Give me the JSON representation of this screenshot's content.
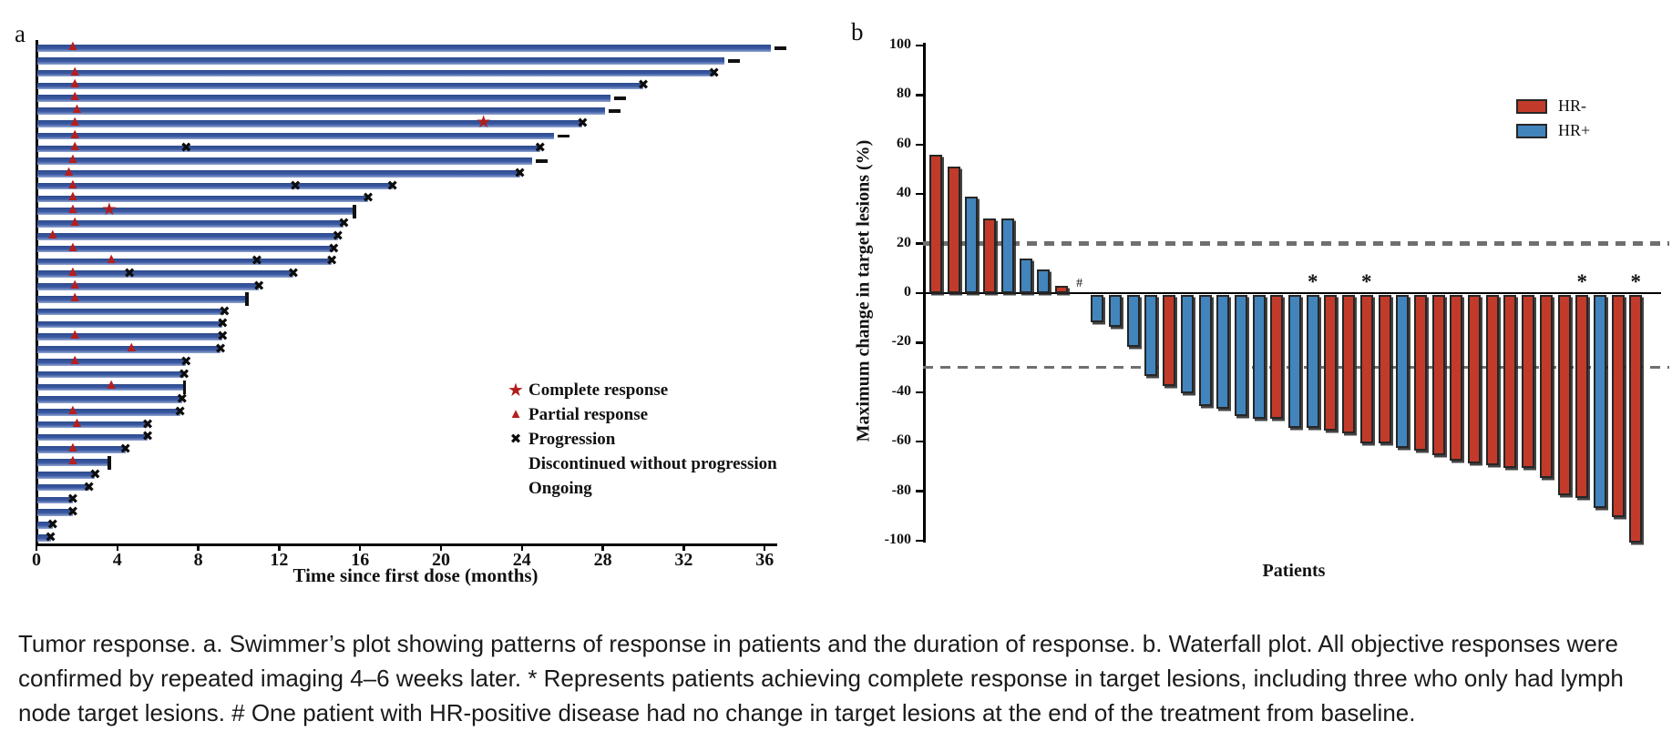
{
  "caption": {
    "lines": [
      "Tumor response. a. Swimmer’s plot showing patterns of response in patients and the duration of response. b. Waterfall plot. All objective responses were",
      "confirmed by repeated imaging 4–6 weeks later. * Represents patients achieving complete response in target lesions, including three who only had lymph",
      "node target lesions. # One patient with HR-positive disease had no change in target lesions at the end of the treatment from baseline."
    ]
  },
  "colors": {
    "swimmer_bar": "#3a59a3",
    "response_red": "#b51f1f",
    "hr_negative": "#c23b2a",
    "hr_positive": "#4284bc",
    "marker_black": "#0d0d0d",
    "dashed_gray": "#6f6f6f"
  },
  "chart_data": [
    {
      "id": "swimmer",
      "type": "bar",
      "orientation": "horizontal",
      "panel_label": "a",
      "xlabel": "Time since first dose (months)",
      "xticks": [
        0,
        4,
        8,
        12,
        16,
        20,
        24,
        28,
        32,
        36
      ],
      "xlim": [
        0,
        36.6
      ],
      "legend": [
        {
          "symbol": "star",
          "label": "Complete response"
        },
        {
          "symbol": "triangle",
          "label": "Partial response"
        },
        {
          "symbol": "cross",
          "label": "Progression"
        },
        {
          "symbol": "vbar",
          "label": "Discontinued without progression"
        },
        {
          "symbol": "dash",
          "label": "Ongoing"
        }
      ],
      "bars": [
        {
          "months": 36.3,
          "end": "ongoing",
          "events": [
            [
              "pr",
              1.8
            ]
          ]
        },
        {
          "months": 34.0,
          "end": "ongoing",
          "events": []
        },
        {
          "months": 33.5,
          "end": "progression",
          "events": [
            [
              "pr",
              1.9
            ]
          ]
        },
        {
          "months": 30.0,
          "end": "progression",
          "events": [
            [
              "pr",
              1.9
            ]
          ]
        },
        {
          "months": 28.4,
          "end": "ongoing",
          "events": [
            [
              "pr",
              1.9
            ]
          ]
        },
        {
          "months": 28.1,
          "end": "ongoing",
          "events": [
            [
              "pr",
              2.0
            ]
          ]
        },
        {
          "months": 27.0,
          "end": "progression",
          "events": [
            [
              "pr",
              1.9
            ],
            [
              "cr",
              22.1
            ]
          ]
        },
        {
          "months": 25.6,
          "end": "ongoing",
          "events": [
            [
              "pr",
              1.9
            ]
          ]
        },
        {
          "months": 24.9,
          "end": "progression",
          "events": [
            [
              "pr",
              1.9
            ],
            [
              "x",
              7.4
            ]
          ]
        },
        {
          "months": 24.5,
          "end": "ongoing",
          "events": [
            [
              "pr",
              1.8
            ]
          ]
        },
        {
          "months": 23.9,
          "end": "progression",
          "events": [
            [
              "pr",
              1.6
            ]
          ]
        },
        {
          "months": 17.6,
          "end": "progression",
          "events": [
            [
              "pr",
              1.8
            ],
            [
              "x",
              12.8
            ]
          ]
        },
        {
          "months": 16.4,
          "end": "progression",
          "events": [
            [
              "pr",
              1.8
            ]
          ]
        },
        {
          "months": 15.7,
          "end": "discontinued",
          "events": [
            [
              "pr",
              1.8
            ],
            [
              "cr",
              3.6
            ]
          ]
        },
        {
          "months": 15.2,
          "end": "progression",
          "events": [
            [
              "pr",
              1.9
            ]
          ]
        },
        {
          "months": 14.9,
          "end": "progression",
          "events": [
            [
              "pr",
              0.8
            ]
          ]
        },
        {
          "months": 14.7,
          "end": "progression",
          "events": [
            [
              "pr",
              1.8
            ]
          ]
        },
        {
          "months": 14.6,
          "end": "progression",
          "events": [
            [
              "pr",
              3.7
            ],
            [
              "x",
              10.9
            ]
          ]
        },
        {
          "months": 12.7,
          "end": "progression",
          "events": [
            [
              "pr",
              1.8
            ],
            [
              "x",
              4.6
            ]
          ]
        },
        {
          "months": 11.0,
          "end": "progression",
          "events": [
            [
              "pr",
              1.9
            ]
          ]
        },
        {
          "months": 10.4,
          "end": "discontinued",
          "events": [
            [
              "pr",
              1.9
            ]
          ]
        },
        {
          "months": 9.3,
          "end": "progression",
          "events": []
        },
        {
          "months": 9.2,
          "end": "progression",
          "events": []
        },
        {
          "months": 9.2,
          "end": "progression",
          "events": [
            [
              "pr",
              1.9
            ]
          ]
        },
        {
          "months": 9.1,
          "end": "progression",
          "events": [
            [
              "pr",
              4.7
            ]
          ]
        },
        {
          "months": 7.4,
          "end": "progression",
          "events": [
            [
              "pr",
              1.9
            ]
          ]
        },
        {
          "months": 7.3,
          "end": "progression",
          "events": []
        },
        {
          "months": 7.3,
          "end": "discontinued",
          "events": [
            [
              "pr",
              3.7
            ]
          ]
        },
        {
          "months": 7.2,
          "end": "progression",
          "events": []
        },
        {
          "months": 7.1,
          "end": "progression",
          "events": [
            [
              "pr",
              1.8
            ]
          ]
        },
        {
          "months": 5.5,
          "end": "progression",
          "events": [
            [
              "pr",
              2.0
            ]
          ]
        },
        {
          "months": 5.5,
          "end": "progression",
          "events": []
        },
        {
          "months": 4.4,
          "end": "progression",
          "events": [
            [
              "pr",
              1.8
            ]
          ]
        },
        {
          "months": 3.6,
          "end": "discontinued",
          "events": [
            [
              "pr",
              1.8
            ]
          ]
        },
        {
          "months": 2.9,
          "end": "progression",
          "events": []
        },
        {
          "months": 2.6,
          "end": "progression",
          "events": []
        },
        {
          "months": 1.8,
          "end": "progression",
          "events": []
        },
        {
          "months": 1.8,
          "end": "progression",
          "events": []
        },
        {
          "months": 0.8,
          "end": "progression",
          "events": []
        },
        {
          "months": 0.7,
          "end": "progression",
          "events": []
        }
      ]
    },
    {
      "id": "waterfall",
      "type": "bar",
      "panel_label": "b",
      "ylabel": "Maximum change in target lesions (%)",
      "xlabel": "Patients",
      "ylim": [
        -100,
        100
      ],
      "yticks": [
        100,
        80,
        60,
        40,
        20,
        0,
        -20,
        -40,
        -60,
        -80,
        -100
      ],
      "reference_lines": [
        20,
        -30
      ],
      "legend": [
        {
          "label": "HR-",
          "group": "hr_negative"
        },
        {
          "label": "HR+",
          "group": "hr_positive"
        }
      ],
      "values": [
        {
          "v": 56,
          "g": "HR-"
        },
        {
          "v": 51,
          "g": "HR-"
        },
        {
          "v": 39,
          "g": "HR+"
        },
        {
          "v": 30,
          "g": "HR-"
        },
        {
          "v": 30,
          "g": "HR+"
        },
        {
          "v": 14,
          "g": "HR+"
        },
        {
          "v": 9.5,
          "g": "HR+"
        },
        {
          "v": 3,
          "g": "HR-"
        },
        {
          "v": 0,
          "g": "HR+",
          "note": "#"
        },
        {
          "v": -11,
          "g": "HR+"
        },
        {
          "v": -13,
          "g": "HR+"
        },
        {
          "v": -21,
          "g": "HR+"
        },
        {
          "v": -33,
          "g": "HR+"
        },
        {
          "v": -37,
          "g": "HR-"
        },
        {
          "v": -40,
          "g": "HR+"
        },
        {
          "v": -45,
          "g": "HR+"
        },
        {
          "v": -46,
          "g": "HR+"
        },
        {
          "v": -49,
          "g": "HR+"
        },
        {
          "v": -50,
          "g": "HR+"
        },
        {
          "v": -50,
          "g": "HR-"
        },
        {
          "v": -54,
          "g": "HR+"
        },
        {
          "v": -54,
          "g": "HR+",
          "note": "*"
        },
        {
          "v": -55,
          "g": "HR-"
        },
        {
          "v": -56,
          "g": "HR-"
        },
        {
          "v": -60,
          "g": "HR-",
          "note": "*"
        },
        {
          "v": -60,
          "g": "HR-"
        },
        {
          "v": -62,
          "g": "HR+"
        },
        {
          "v": -63,
          "g": "HR-"
        },
        {
          "v": -65,
          "g": "HR-"
        },
        {
          "v": -67,
          "g": "HR-"
        },
        {
          "v": -68,
          "g": "HR-"
        },
        {
          "v": -69,
          "g": "HR-"
        },
        {
          "v": -70,
          "g": "HR-"
        },
        {
          "v": -70,
          "g": "HR-"
        },
        {
          "v": -74,
          "g": "HR-"
        },
        {
          "v": -81,
          "g": "HR-"
        },
        {
          "v": -82,
          "g": "HR-",
          "note": "*"
        },
        {
          "v": -86,
          "g": "HR+"
        },
        {
          "v": -90,
          "g": "HR-"
        },
        {
          "v": -100,
          "g": "HR-",
          "note": "*"
        }
      ]
    }
  ]
}
